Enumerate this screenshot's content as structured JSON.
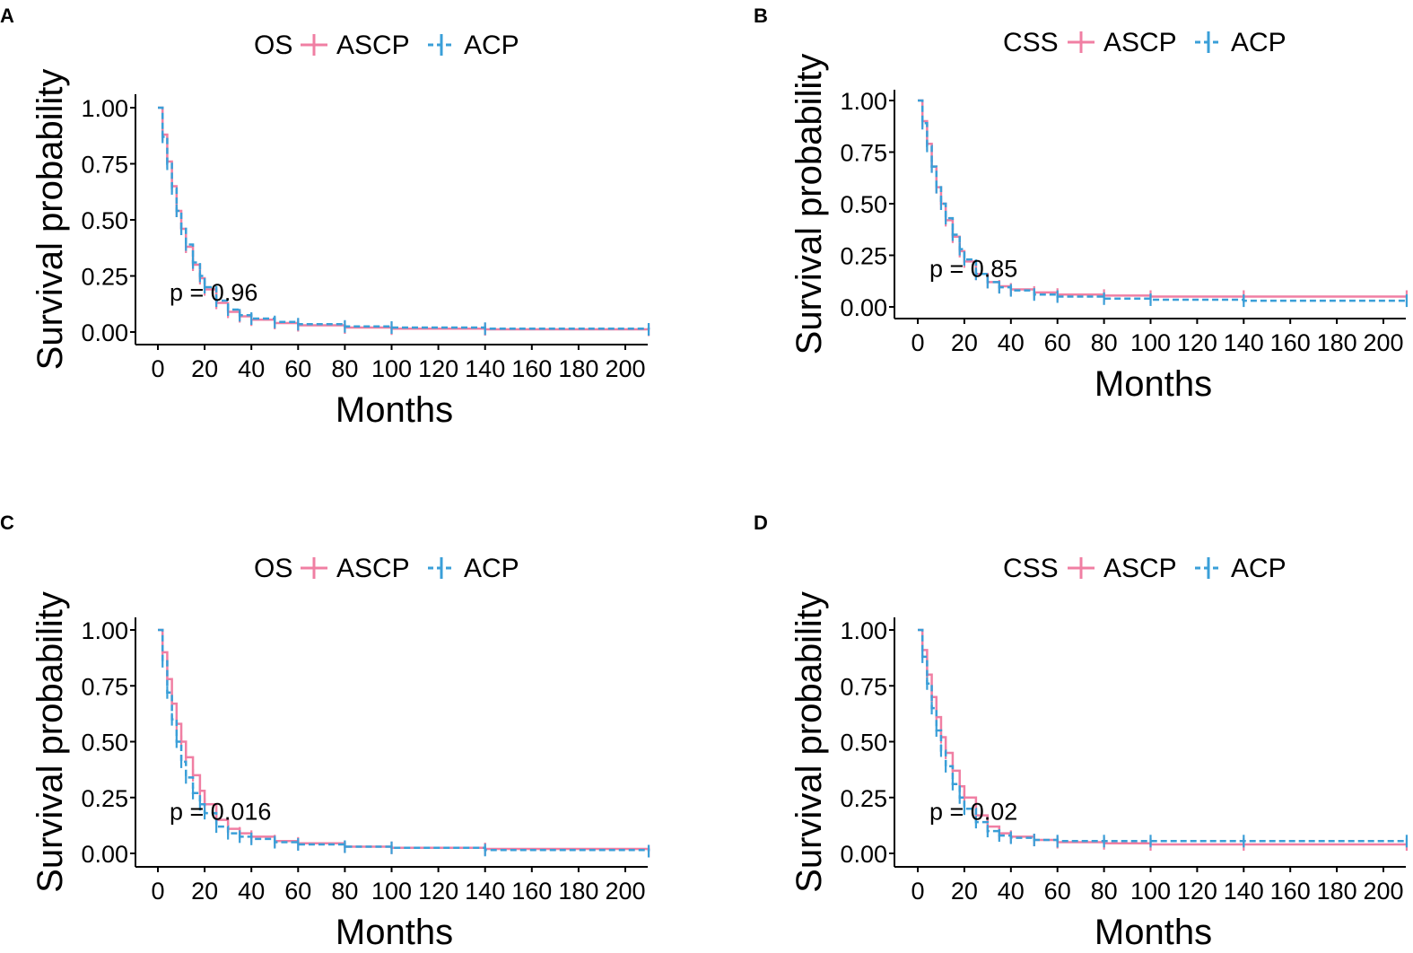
{
  "figure": {
    "colors": {
      "ASCP": "#f07fa3",
      "ACP": "#3a9fd8",
      "axis": "#000000"
    }
  },
  "chart_data": [
    {
      "panel": "A",
      "type": "line",
      "subtype": "kaplan-meier",
      "legend_title": "OS",
      "legend_position": "top",
      "xlabel": "Months",
      "ylabel": "Survival probability",
      "xlim": [
        0,
        210
      ],
      "ylim": [
        0,
        1
      ],
      "xticks": [
        "0",
        "20",
        "40",
        "60",
        "80",
        "100",
        "120",
        "140",
        "160",
        "180",
        "200"
      ],
      "yticks": [
        "0.00",
        "0.25",
        "0.50",
        "0.75",
        "1.00"
      ],
      "pvalue_text": "p = 0.96",
      "pvalue_pos": [
        5,
        0.18
      ],
      "series": [
        {
          "name": "ASCP",
          "x": [
            0,
            2,
            4,
            6,
            8,
            10,
            12,
            15,
            18,
            20,
            25,
            30,
            35,
            40,
            50,
            60,
            80,
            100,
            140,
            210
          ],
          "y": [
            1.0,
            0.88,
            0.76,
            0.65,
            0.54,
            0.46,
            0.38,
            0.3,
            0.24,
            0.19,
            0.13,
            0.09,
            0.07,
            0.055,
            0.04,
            0.03,
            0.02,
            0.015,
            0.012,
            0.01
          ]
        },
        {
          "name": "ACP",
          "x": [
            0,
            2,
            4,
            6,
            8,
            10,
            12,
            15,
            18,
            20,
            25,
            30,
            35,
            40,
            50,
            60,
            80,
            100,
            140,
            210
          ],
          "y": [
            1.0,
            0.87,
            0.75,
            0.64,
            0.54,
            0.46,
            0.39,
            0.31,
            0.25,
            0.2,
            0.14,
            0.1,
            0.075,
            0.06,
            0.045,
            0.035,
            0.025,
            0.02,
            0.015,
            0.012
          ]
        }
      ]
    },
    {
      "panel": "B",
      "type": "line",
      "subtype": "kaplan-meier",
      "legend_title": "CSS",
      "legend_position": "top",
      "xlabel": "Months",
      "ylabel": "Survival probability",
      "xlim": [
        0,
        210
      ],
      "ylim": [
        0,
        1
      ],
      "xticks": [
        "0",
        "20",
        "40",
        "60",
        "80",
        "100",
        "120",
        "140",
        "160",
        "180",
        "200"
      ],
      "yticks": [
        "0.00",
        "0.25",
        "0.50",
        "0.75",
        "1.00"
      ],
      "pvalue_text": "p = 0.85",
      "pvalue_pos": [
        5,
        0.19
      ],
      "series": [
        {
          "name": "ASCP",
          "x": [
            0,
            2,
            4,
            6,
            8,
            10,
            12,
            15,
            18,
            20,
            25,
            30,
            35,
            40,
            50,
            60,
            80,
            100,
            140,
            210
          ],
          "y": [
            1.0,
            0.9,
            0.79,
            0.68,
            0.58,
            0.5,
            0.42,
            0.34,
            0.27,
            0.22,
            0.16,
            0.12,
            0.1,
            0.085,
            0.07,
            0.06,
            0.055,
            0.05,
            0.05,
            0.05
          ]
        },
        {
          "name": "ACP",
          "x": [
            0,
            2,
            4,
            6,
            8,
            10,
            12,
            15,
            18,
            20,
            25,
            30,
            35,
            40,
            50,
            60,
            80,
            100,
            140,
            210
          ],
          "y": [
            1.0,
            0.89,
            0.78,
            0.68,
            0.58,
            0.5,
            0.43,
            0.35,
            0.28,
            0.23,
            0.16,
            0.12,
            0.095,
            0.08,
            0.06,
            0.05,
            0.04,
            0.035,
            0.03,
            0.03
          ]
        }
      ]
    },
    {
      "panel": "C",
      "type": "line",
      "subtype": "kaplan-meier",
      "legend_title": "OS",
      "legend_position": "top",
      "xlabel": "Months",
      "ylabel": "Survival probability",
      "xlim": [
        0,
        210
      ],
      "ylim": [
        0,
        1
      ],
      "xticks": [
        "0",
        "20",
        "40",
        "60",
        "80",
        "100",
        "120",
        "140",
        "160",
        "180",
        "200"
      ],
      "yticks": [
        "0.00",
        "0.25",
        "0.50",
        "0.75",
        "1.00"
      ],
      "pvalue_text": "p = 0.016",
      "pvalue_pos": [
        5,
        0.19
      ],
      "series": [
        {
          "name": "ASCP",
          "x": [
            0,
            2,
            4,
            6,
            8,
            10,
            12,
            15,
            18,
            20,
            25,
            30,
            35,
            40,
            50,
            60,
            80,
            100,
            140,
            210
          ],
          "y": [
            1.0,
            0.9,
            0.78,
            0.67,
            0.58,
            0.5,
            0.43,
            0.35,
            0.28,
            0.22,
            0.15,
            0.11,
            0.09,
            0.075,
            0.055,
            0.045,
            0.03,
            0.025,
            0.02,
            0.01
          ]
        },
        {
          "name": "ACP",
          "x": [
            0,
            2,
            4,
            6,
            8,
            10,
            12,
            15,
            18,
            20,
            25,
            30,
            35,
            40,
            50,
            60,
            80,
            100,
            140,
            210
          ],
          "y": [
            1.0,
            0.86,
            0.72,
            0.6,
            0.5,
            0.41,
            0.34,
            0.27,
            0.22,
            0.18,
            0.12,
            0.09,
            0.075,
            0.065,
            0.05,
            0.04,
            0.03,
            0.025,
            0.015,
            0.01
          ]
        }
      ]
    },
    {
      "panel": "D",
      "type": "line",
      "subtype": "kaplan-meier",
      "legend_title": "CSS",
      "legend_position": "top",
      "xlabel": "Months",
      "ylabel": "Survival probability",
      "xlim": [
        0,
        210
      ],
      "ylim": [
        0,
        1
      ],
      "xticks": [
        "0",
        "20",
        "40",
        "60",
        "80",
        "100",
        "120",
        "140",
        "160",
        "180",
        "200"
      ],
      "yticks": [
        "0.00",
        "0.25",
        "0.50",
        "0.75",
        "1.00"
      ],
      "pvalue_text": "p = 0.02",
      "pvalue_pos": [
        5,
        0.19
      ],
      "series": [
        {
          "name": "ASCP",
          "x": [
            0,
            2,
            4,
            6,
            8,
            10,
            12,
            15,
            18,
            20,
            25,
            30,
            35,
            40,
            50,
            60,
            80,
            100,
            140,
            210
          ],
          "y": [
            1.0,
            0.91,
            0.8,
            0.7,
            0.61,
            0.52,
            0.45,
            0.37,
            0.3,
            0.25,
            0.17,
            0.12,
            0.09,
            0.075,
            0.06,
            0.05,
            0.045,
            0.04,
            0.04,
            0.04
          ]
        },
        {
          "name": "ACP",
          "x": [
            0,
            2,
            4,
            6,
            8,
            10,
            12,
            15,
            18,
            20,
            25,
            30,
            35,
            40,
            50,
            60,
            80,
            100,
            140,
            210
          ],
          "y": [
            1.0,
            0.88,
            0.76,
            0.65,
            0.55,
            0.46,
            0.39,
            0.31,
            0.25,
            0.2,
            0.14,
            0.1,
            0.08,
            0.07,
            0.06,
            0.055,
            0.055,
            0.055,
            0.055,
            0.055
          ]
        }
      ]
    }
  ]
}
